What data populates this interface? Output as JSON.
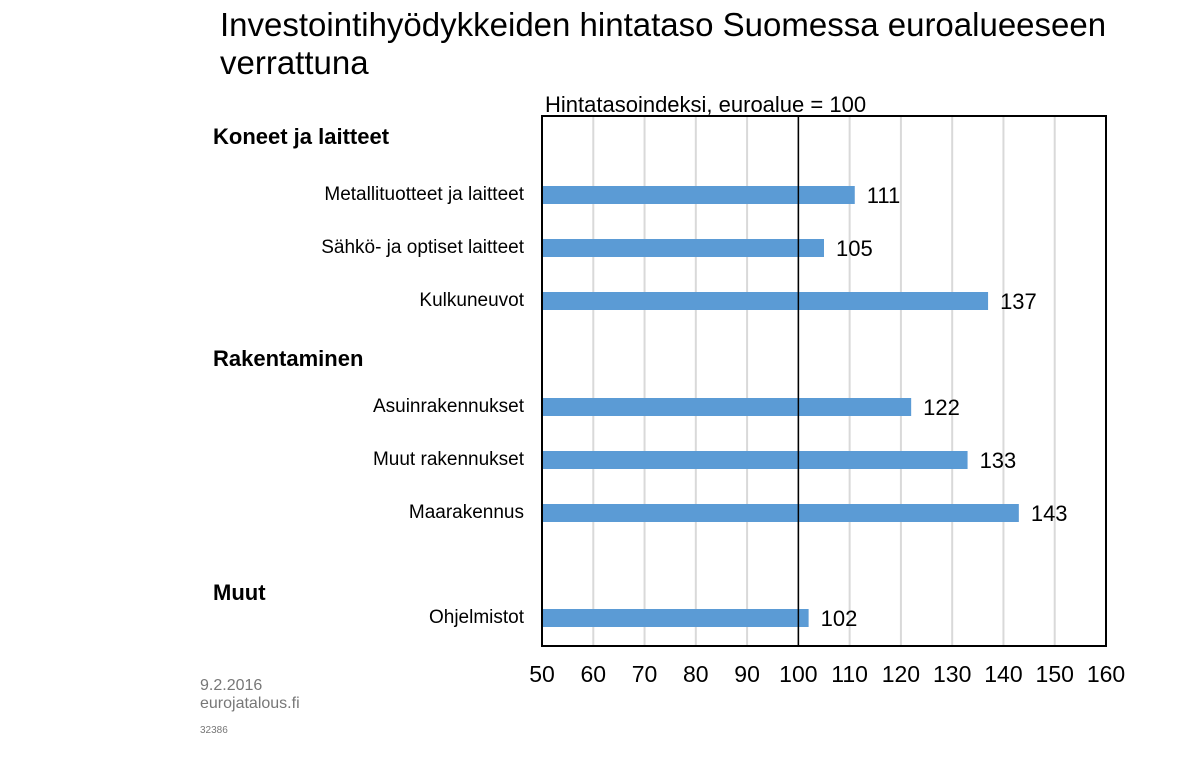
{
  "chart_data": {
    "type": "bar",
    "orientation": "horizontal",
    "title": "Investointihyödykkeiden hintataso Suomessa euroalueeseen verrattuna",
    "subtitle": "Hintatasoindeksi, euroalue = 100",
    "xlim": [
      50,
      160
    ],
    "xticks": [
      50,
      60,
      70,
      80,
      90,
      100,
      110,
      120,
      130,
      140,
      150,
      160
    ],
    "reference_line": 100,
    "grid": true,
    "bar_color": "#5B9BD5",
    "groups": [
      {
        "name": "Koneet ja laitteet",
        "color": "#FFF2CC",
        "categories": [
          "Metallituotteet ja laitteet",
          "Sähkö- ja optiset laitteet",
          "Kulkuneuvot"
        ],
        "values": [
          111,
          105,
          137
        ]
      },
      {
        "name": "Rakentaminen",
        "color": "#E2EFDA",
        "categories": [
          "Asuinrakennukset",
          "Muut rakennukset",
          "Maarakennus"
        ],
        "values": [
          122,
          133,
          143
        ]
      },
      {
        "name": "Muut",
        "color": "#D9E1F2",
        "categories": [
          "Ohjelmistot"
        ],
        "values": [
          102
        ]
      }
    ]
  },
  "footer": {
    "date": "9.2.2016",
    "site": "eurojatalous.fi",
    "code": "32386"
  }
}
